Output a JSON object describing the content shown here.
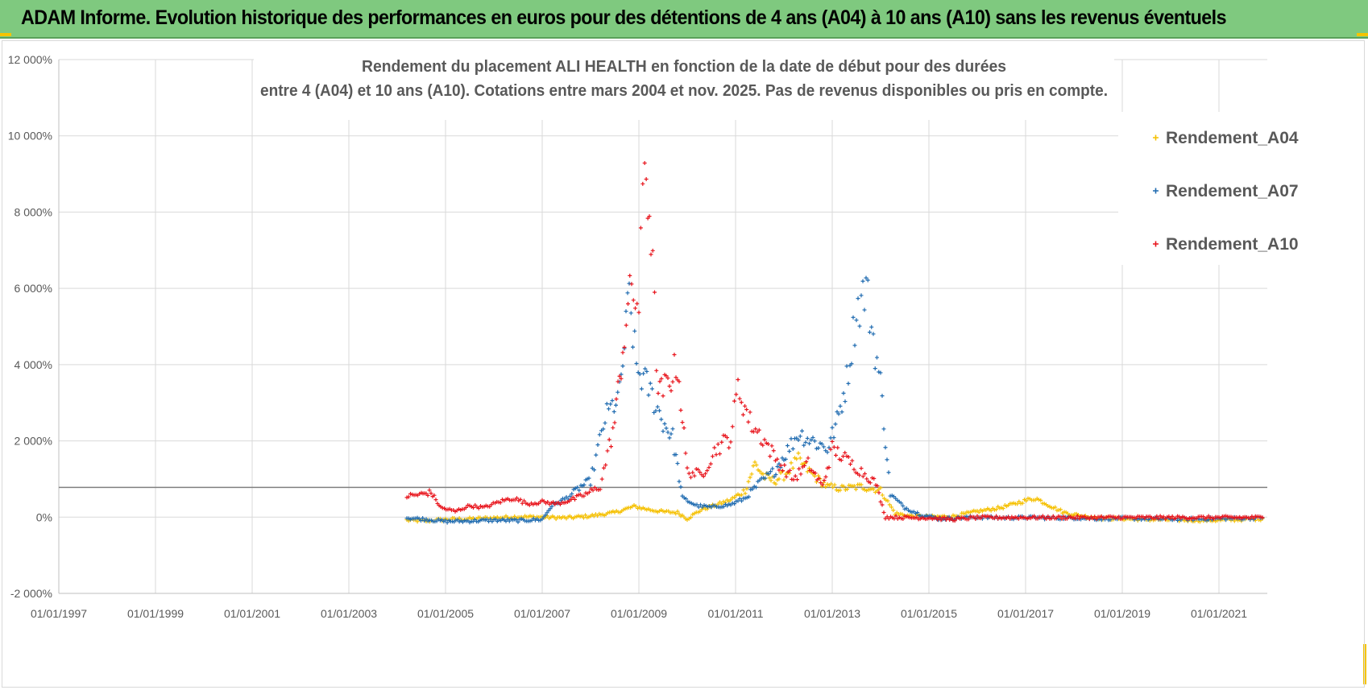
{
  "banner": {
    "title": "ADAM Informe. Evolution historique des performances en euros pour des détentions de 4 ans (A04) à 10 ans (A10) sans les revenus éventuels",
    "color": "#7fc97f"
  },
  "chart_data": {
    "type": "scatter",
    "title_line1": "Rendement du placement ALI HEALTH en fonction de la date de début pour des durées",
    "title_line2": "entre 4 (A04) et 10 ans (A10). Cotations entre mars 2004 et nov. 2025. Pas de revenus disponibles ou pris en compte.",
    "xlabel": "",
    "ylabel": "",
    "xlim": [
      1997.0,
      2022.0
    ],
    "ylim": [
      -2000,
      12000
    ],
    "reference_line_y": 780,
    "x_ticks": [
      "01/01/1997",
      "01/01/1999",
      "01/01/2001",
      "01/01/2003",
      "01/01/2005",
      "01/01/2007",
      "01/01/2009",
      "01/01/2011",
      "01/01/2013",
      "01/01/2015",
      "01/01/2017",
      "01/01/2019",
      "01/01/2021"
    ],
    "x_tick_values": [
      1997,
      1999,
      2001,
      2003,
      2005,
      2007,
      2009,
      2011,
      2013,
      2015,
      2017,
      2019,
      2021
    ],
    "y_ticks": [
      "12 000%",
      "10 000%",
      "8 000%",
      "6 000%",
      "4 000%",
      "2 000%",
      "0%",
      "-2 000%"
    ],
    "y_tick_values": [
      12000,
      10000,
      8000,
      6000,
      4000,
      2000,
      0,
      -2000
    ],
    "legend_position": "right",
    "series": [
      {
        "name": "Rendement_A04",
        "color": "#f5c000",
        "points": [
          [
            2004.2,
            -80
          ],
          [
            2004.6,
            -100
          ],
          [
            2005.0,
            -60
          ],
          [
            2005.5,
            -50
          ],
          [
            2006.0,
            -20
          ],
          [
            2006.5,
            10
          ],
          [
            2007.0,
            0
          ],
          [
            2007.5,
            -20
          ],
          [
            2008.0,
            30
          ],
          [
            2008.5,
            120
          ],
          [
            2008.9,
            280
          ],
          [
            2009.2,
            200
          ],
          [
            2009.5,
            140
          ],
          [
            2009.8,
            120
          ],
          [
            2010.0,
            -40
          ],
          [
            2010.3,
            200
          ],
          [
            2010.6,
            320
          ],
          [
            2010.9,
            450
          ],
          [
            2011.2,
            700
          ],
          [
            2011.4,
            1400
          ],
          [
            2011.6,
            1050
          ],
          [
            2011.8,
            950
          ],
          [
            2012.0,
            1100
          ],
          [
            2012.3,
            1500
          ],
          [
            2012.6,
            1100
          ],
          [
            2012.9,
            800
          ],
          [
            2013.2,
            750
          ],
          [
            2013.6,
            800
          ],
          [
            2014.0,
            700
          ],
          [
            2014.3,
            100
          ],
          [
            2014.6,
            30
          ],
          [
            2015.0,
            0
          ],
          [
            2015.5,
            20
          ],
          [
            2016.0,
            150
          ],
          [
            2016.5,
            250
          ],
          [
            2016.9,
            400
          ],
          [
            2017.2,
            500
          ],
          [
            2017.5,
            300
          ],
          [
            2017.8,
            120
          ],
          [
            2018.2,
            20
          ],
          [
            2018.6,
            -30
          ],
          [
            2019.0,
            -40
          ],
          [
            2019.5,
            -60
          ],
          [
            2020.0,
            -70
          ],
          [
            2020.5,
            -80
          ],
          [
            2021.0,
            -80
          ],
          [
            2021.5,
            -60
          ],
          [
            2021.9,
            -40
          ]
        ]
      },
      {
        "name": "Rendement_A07",
        "color": "#1f6bb0",
        "points": [
          [
            2004.2,
            -20
          ],
          [
            2004.6,
            -60
          ],
          [
            2005.0,
            -110
          ],
          [
            2005.5,
            -100
          ],
          [
            2006.0,
            -80
          ],
          [
            2006.5,
            -90
          ],
          [
            2007.0,
            -60
          ],
          [
            2007.2,
            300
          ],
          [
            2007.5,
            500
          ],
          [
            2007.8,
            800
          ],
          [
            2008.0,
            950
          ],
          [
            2008.3,
            2600
          ],
          [
            2008.6,
            3200
          ],
          [
            2008.8,
            5800
          ],
          [
            2008.95,
            3900
          ],
          [
            2009.2,
            3400
          ],
          [
            2009.5,
            2500
          ],
          [
            2009.7,
            2100
          ],
          [
            2009.9,
            500
          ],
          [
            2010.2,
            300
          ],
          [
            2010.5,
            260
          ],
          [
            2010.9,
            330
          ],
          [
            2011.2,
            500
          ],
          [
            2011.5,
            900
          ],
          [
            2011.8,
            1200
          ],
          [
            2012.0,
            1600
          ],
          [
            2012.3,
            2200
          ],
          [
            2012.6,
            2000
          ],
          [
            2012.9,
            1800
          ],
          [
            2013.1,
            2500
          ],
          [
            2013.3,
            3600
          ],
          [
            2013.5,
            5400
          ],
          [
            2013.7,
            6000
          ],
          [
            2013.85,
            4700
          ],
          [
            2014.0,
            3500
          ],
          [
            2014.2,
            600
          ],
          [
            2014.5,
            250
          ],
          [
            2014.8,
            80
          ],
          [
            2015.2,
            -40
          ],
          [
            2015.6,
            -20
          ],
          [
            2016.0,
            0
          ],
          [
            2016.5,
            -20
          ],
          [
            2017.0,
            -10
          ],
          [
            2017.5,
            -20
          ],
          [
            2018.0,
            -20
          ],
          [
            2018.5,
            -40
          ],
          [
            2019.0,
            -30
          ],
          [
            2019.5,
            -40
          ],
          [
            2020.0,
            -50
          ],
          [
            2020.5,
            -50
          ],
          [
            2021.0,
            -40
          ],
          [
            2021.5,
            -30
          ],
          [
            2021.9,
            -20
          ]
        ]
      },
      {
        "name": "Rendement_A10",
        "color": "#e8141c",
        "points": [
          [
            2004.2,
            550
          ],
          [
            2004.5,
            600
          ],
          [
            2004.7,
            650
          ],
          [
            2004.9,
            250
          ],
          [
            2005.2,
            150
          ],
          [
            2005.5,
            300
          ],
          [
            2005.8,
            250
          ],
          [
            2006.1,
            400
          ],
          [
            2006.4,
            500
          ],
          [
            2006.7,
            350
          ],
          [
            2007.0,
            400
          ],
          [
            2007.3,
            350
          ],
          [
            2007.6,
            450
          ],
          [
            2007.9,
            600
          ],
          [
            2008.2,
            800
          ],
          [
            2008.5,
            2500
          ],
          [
            2008.7,
            4800
          ],
          [
            2008.85,
            6000
          ],
          [
            2009.0,
            5500
          ],
          [
            2009.12,
            9500
          ],
          [
            2009.25,
            7500
          ],
          [
            2009.4,
            3200
          ],
          [
            2009.6,
            3500
          ],
          [
            2009.8,
            4000
          ],
          [
            2010.0,
            1200
          ],
          [
            2010.3,
            1100
          ],
          [
            2010.6,
            1800
          ],
          [
            2010.9,
            2100
          ],
          [
            2011.05,
            3400
          ],
          [
            2011.3,
            2500
          ],
          [
            2011.6,
            2000
          ],
          [
            2011.9,
            1400
          ],
          [
            2012.2,
            1000
          ],
          [
            2012.5,
            1400
          ],
          [
            2012.8,
            800
          ],
          [
            2013.0,
            1800
          ],
          [
            2013.3,
            1500
          ],
          [
            2013.6,
            1200
          ],
          [
            2013.9,
            900
          ],
          [
            2014.1,
            0
          ],
          [
            2014.5,
            -10
          ],
          [
            2015.0,
            -20
          ],
          [
            2015.5,
            -60
          ],
          [
            2016.0,
            -10
          ],
          [
            2016.5,
            -10
          ],
          [
            2017.0,
            -10
          ],
          [
            2017.5,
            -10
          ],
          [
            2018.0,
            -10
          ],
          [
            2018.5,
            -10
          ],
          [
            2019.0,
            -10
          ],
          [
            2019.5,
            -10
          ],
          [
            2020.0,
            -10
          ],
          [
            2020.5,
            -10
          ],
          [
            2021.0,
            -10
          ],
          [
            2021.5,
            -10
          ],
          [
            2021.9,
            -10
          ]
        ]
      }
    ]
  }
}
